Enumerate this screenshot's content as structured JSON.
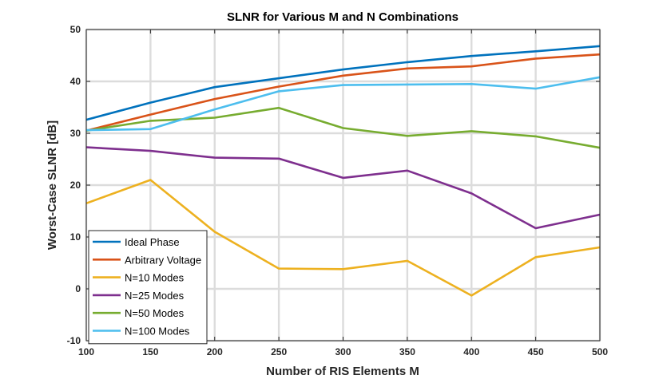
{
  "chart_data": {
    "type": "line",
    "title": "SLNR for Various M and N Combinations",
    "xlabel": "Number of RIS Elements M",
    "ylabel": "Worst-Case SLNR [dB]",
    "xlim": [
      100,
      500
    ],
    "ylim": [
      -10,
      50
    ],
    "x_ticks": [
      100,
      150,
      200,
      250,
      300,
      350,
      400,
      450,
      500
    ],
    "y_ticks": [
      -10,
      0,
      10,
      20,
      30,
      40,
      50
    ],
    "grid": true,
    "legend_position": "bottom-left",
    "x": [
      100,
      150,
      200,
      250,
      300,
      350,
      400,
      450,
      500
    ],
    "series": [
      {
        "name": "Ideal Phase",
        "color": "#0072BD",
        "values": [
          32.6,
          35.9,
          38.9,
          40.6,
          42.3,
          43.7,
          44.9,
          45.8,
          46.8
        ]
      },
      {
        "name": "Arbitrary Voltage",
        "color": "#D95319",
        "values": [
          30.5,
          33.6,
          36.6,
          39.0,
          41.1,
          42.5,
          42.9,
          44.4,
          45.2
        ]
      },
      {
        "name": "N=10 Modes",
        "color": "#EDB120",
        "values": [
          16.5,
          21.0,
          11.0,
          3.9,
          3.8,
          5.4,
          -1.3,
          6.1,
          8.0
        ]
      },
      {
        "name": "N=25 Modes",
        "color": "#7E2F8E",
        "values": [
          27.3,
          26.6,
          25.3,
          25.1,
          21.4,
          22.8,
          18.4,
          11.7,
          14.3
        ]
      },
      {
        "name": "N=50 Modes",
        "color": "#77AC30",
        "values": [
          30.5,
          32.4,
          33.0,
          34.9,
          31.0,
          29.5,
          30.4,
          29.4,
          27.2
        ]
      },
      {
        "name": "N=100 Modes",
        "color": "#4DBEEE",
        "values": [
          30.6,
          30.8,
          34.6,
          38.1,
          39.3,
          39.4,
          39.5,
          38.6,
          40.8
        ]
      }
    ]
  }
}
